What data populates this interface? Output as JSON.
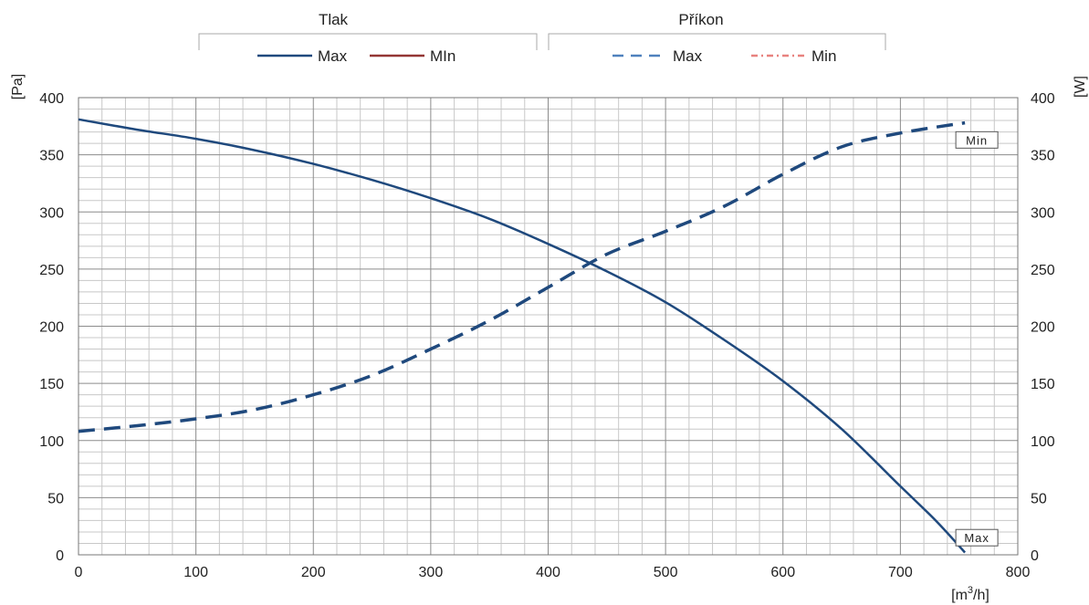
{
  "chart_data": {
    "type": "line",
    "title": "",
    "xlabel": "[m³/h]",
    "xlabel_parts": {
      "base": "[m",
      "sup": "3",
      "tail": "/h]"
    },
    "ylabel_left": "[Pa]",
    "ylabel_right": "[W]",
    "xlim": [
      0,
      800
    ],
    "ylim_left": [
      0,
      400
    ],
    "ylim_right": [
      0,
      400
    ],
    "x_ticks": [
      0,
      100,
      200,
      300,
      400,
      500,
      600,
      700,
      800
    ],
    "y_ticks": [
      0,
      50,
      100,
      150,
      200,
      250,
      300,
      350,
      400
    ],
    "grid": true,
    "legend_groups": [
      {
        "title": "Tlak",
        "entries": [
          {
            "label": "Max",
            "style": "solid",
            "color": "#1f497d"
          },
          {
            "label": "MIn",
            "style": "solid",
            "color": "#943634"
          }
        ]
      },
      {
        "title": "Příkon",
        "entries": [
          {
            "label": "Max",
            "style": "dashed",
            "color": "#4f81bd"
          },
          {
            "label": "Min",
            "style": "dashdot",
            "color": "#e8827f"
          }
        ]
      }
    ],
    "series": [
      {
        "axis": "left",
        "style": "solid",
        "color": "#1f497d",
        "x": [
          0,
          50,
          100,
          150,
          200,
          250,
          300,
          350,
          400,
          450,
          500,
          550,
          600,
          650,
          700,
          730,
          755
        ],
        "y": [
          381,
          372,
          364,
          354,
          342,
          328,
          312,
          294,
          272,
          248,
          221,
          188,
          152,
          110,
          60,
          30,
          2
        ]
      },
      {
        "axis": "right",
        "style": "dashed",
        "color": "#1f497d",
        "x": [
          0,
          50,
          100,
          150,
          200,
          250,
          300,
          350,
          400,
          450,
          500,
          550,
          600,
          650,
          700,
          755
        ],
        "y": [
          108,
          113,
          119,
          127,
          140,
          157,
          180,
          205,
          234,
          263,
          283,
          305,
          333,
          357,
          369,
          378
        ]
      }
    ],
    "annotations": [
      {
        "text": "Min",
        "x": 755,
        "y": 363
      },
      {
        "text": "Max",
        "x": 755,
        "y": 15
      }
    ]
  }
}
